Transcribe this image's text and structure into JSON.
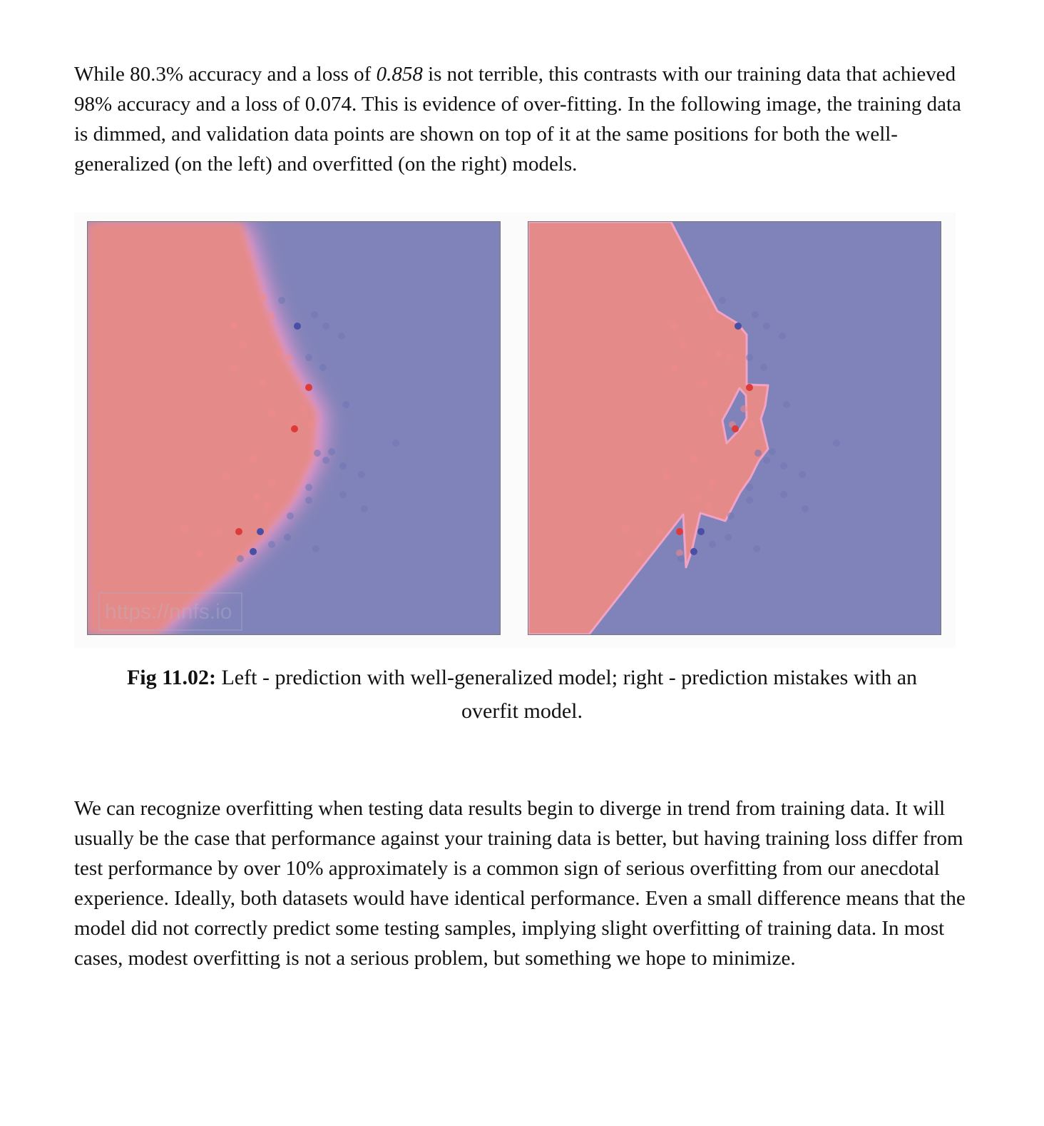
{
  "paragraph1": {
    "before": "While 80.3% accuracy and a loss of ",
    "italic": "0.858",
    "after": " is not terrible, this contrasts with our training data that achieved 98% accuracy and a loss of 0.074. This is evidence of over-fitting. In the following image, the training data is dimmed, and validation data points are shown on top of it at the same positions for both the well-generalized (on the left) and overfitted (on the right) models."
  },
  "figure": {
    "watermark": "https://nnfs.io",
    "colors": {
      "red_region": "#e48a88",
      "blue_region": "#8083b9",
      "boundary_pink": "#f29ad0",
      "validation_red": "#dd3a3a",
      "validation_blue": "#4a4fa6"
    },
    "caption_label": "Fig 11.02:",
    "caption_text": " Left - prediction with well-generalized model; right - prediction mistakes with an overfit model."
  },
  "paragraph2": "We can recognize overfitting when testing data results begin to diverge in trend from training data. It will usually be the case that performance against your training data is better, but having training loss differ from test performance by over 10% approximately is a common sign of serious overfitting from our anecdotal experience. Ideally, both datasets would have identical performance. Even a small difference means that the model did not correctly predict some testing samples, implying slight overfitting of training data. In most cases, modest overfitting is not a serious problem, but something we hope to minimize."
}
